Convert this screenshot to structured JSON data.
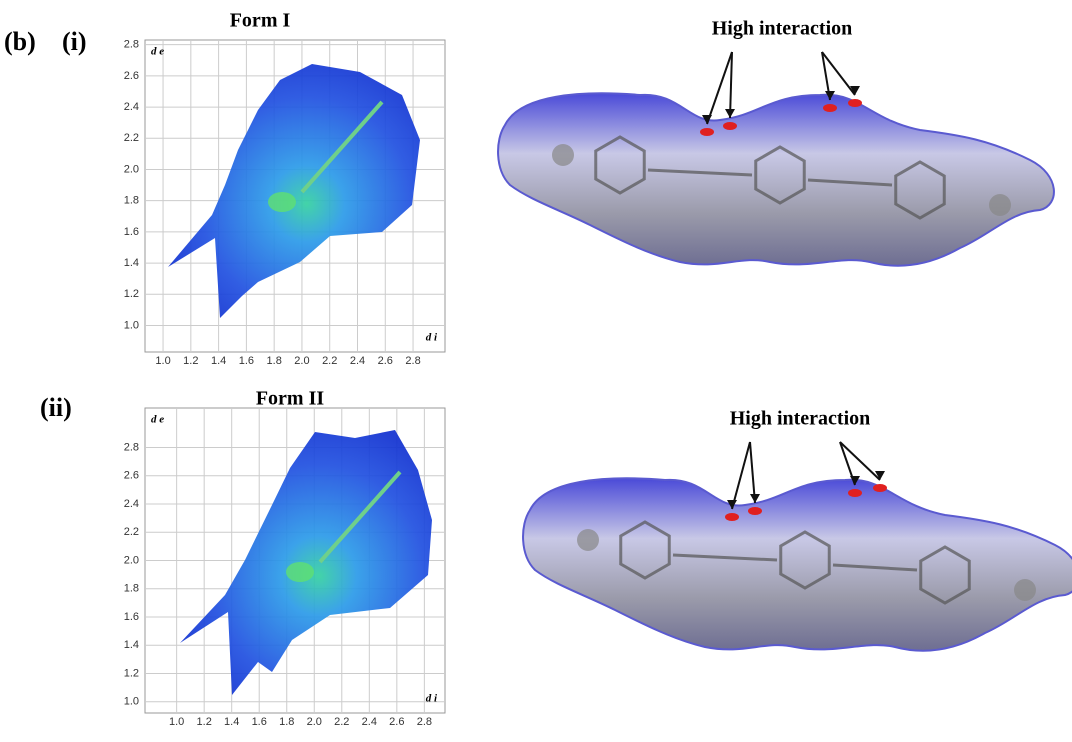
{
  "figure": {
    "label": "(b)",
    "panels": [
      {
        "label": "(i)",
        "title": "Form I",
        "annotation": "High interaction",
        "plot": {
          "xlabel": "d i",
          "ylabel": "d e",
          "xlim": [
            0.87,
            3.03
          ],
          "ylim": [
            0.83,
            2.83
          ],
          "xticks": [
            {
              "value": 1,
              "label": "1.0"
            },
            1.2,
            1.4,
            1.6,
            1.8,
            {
              "value": 2,
              "label": "2.0"
            },
            2.2,
            2.4,
            2.6,
            2.8
          ],
          "yticks": [
            {
              "value": 1,
              "label": "1.0"
            },
            1.2,
            1.4,
            1.6,
            1.8,
            {
              "value": 2,
              "label": "2.0"
            },
            2.2,
            2.4,
            2.6,
            2.8
          ]
        }
      },
      {
        "label": "(ii)",
        "title": "Form II",
        "annotation": "High interaction",
        "plot": {
          "xlabel": "d i",
          "ylabel": "d e",
          "xlim": [
            0.77,
            2.95
          ],
          "ylim": [
            0.92,
            3.08
          ],
          "xticks": [
            {
              "value": 1,
              "label": "1.0"
            },
            1.2,
            1.4,
            1.6,
            1.8,
            {
              "value": 2,
              "label": "2.0"
            },
            2.2,
            2.4,
            2.6,
            2.8
          ],
          "yticks": [
            {
              "value": 1,
              "label": "1.0"
            },
            1.2,
            1.4,
            1.6,
            1.8,
            {
              "value": 2,
              "label": "2.0"
            },
            2.2,
            2.4,
            2.6,
            2.8
          ]
        }
      }
    ]
  }
}
